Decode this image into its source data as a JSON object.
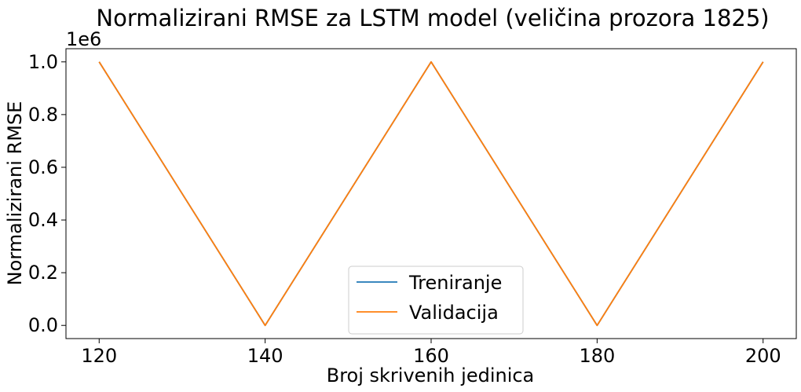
{
  "chart_data": {
    "type": "line",
    "title": "Normalizirani RMSE za LSTM model (veličina prozora 1825)",
    "xlabel": "Broj skrivenih jedinica",
    "ylabel": "Normalizirani RMSE",
    "y_offset_label": "1e6",
    "x": [
      120,
      140,
      160,
      180,
      200
    ],
    "x_ticks": [
      120,
      140,
      160,
      180,
      200
    ],
    "x_tick_labels": [
      "120",
      "140",
      "160",
      "180",
      "200"
    ],
    "y_ticks": [
      0.0,
      0.2,
      0.4,
      0.6,
      0.8,
      1.0
    ],
    "y_tick_labels": [
      "0.0",
      "0.2",
      "0.4",
      "0.6",
      "0.8",
      "1.0"
    ],
    "xlim": [
      116,
      204
    ],
    "ylim": [
      -0.05,
      1.05
    ],
    "y_scale_factor": 1000000,
    "grid": false,
    "legend_position": "lower-center",
    "series": [
      {
        "name": "Treniranje",
        "color": "#1f77b4",
        "values": [
          1.0,
          0.0,
          1.0,
          0.0,
          1.0
        ]
      },
      {
        "name": "Validacija",
        "color": "#ff7f0e",
        "values": [
          1.0,
          0.0,
          1.0,
          0.0,
          1.0
        ]
      }
    ]
  }
}
